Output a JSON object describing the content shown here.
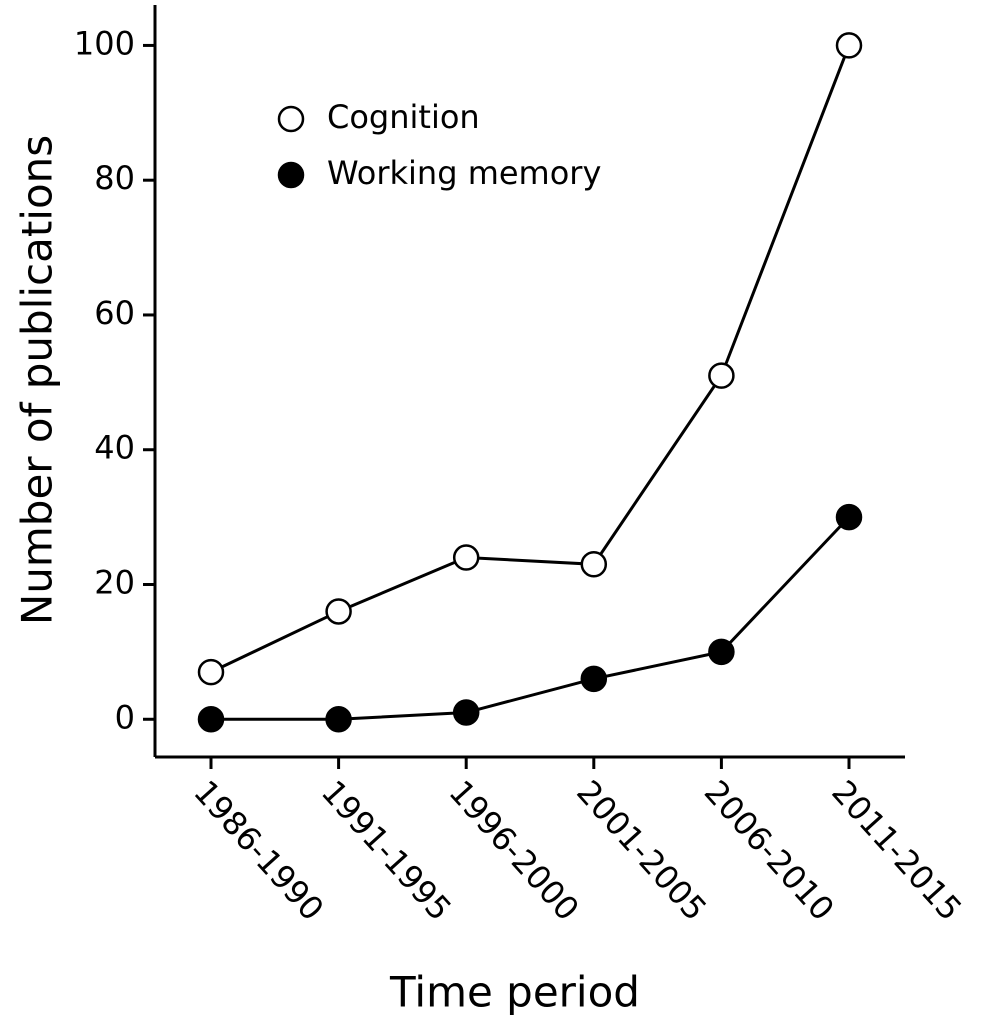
{
  "chart_data": {
    "type": "line",
    "x_label": "Time period",
    "y_label": "Number of publications",
    "categories": [
      "1986-1990",
      "1991-1995",
      "1996-2000",
      "2001-2005",
      "2006-2010",
      "2011-2015"
    ],
    "series": [
      {
        "name": "Cognition",
        "color": "#000000",
        "marker_fill": "#ffffff",
        "values": [
          7,
          16,
          24,
          23,
          51,
          100
        ]
      },
      {
        "name": "Working memory",
        "color": "#000000",
        "marker_fill": "#000000",
        "values": [
          0,
          0,
          1,
          6,
          10,
          30
        ]
      }
    ],
    "ylim": [
      -5.6,
      106
    ],
    "yticks": [
      0,
      20,
      40,
      60,
      80,
      100
    ],
    "grid": false,
    "legend_position": "upper left"
  }
}
